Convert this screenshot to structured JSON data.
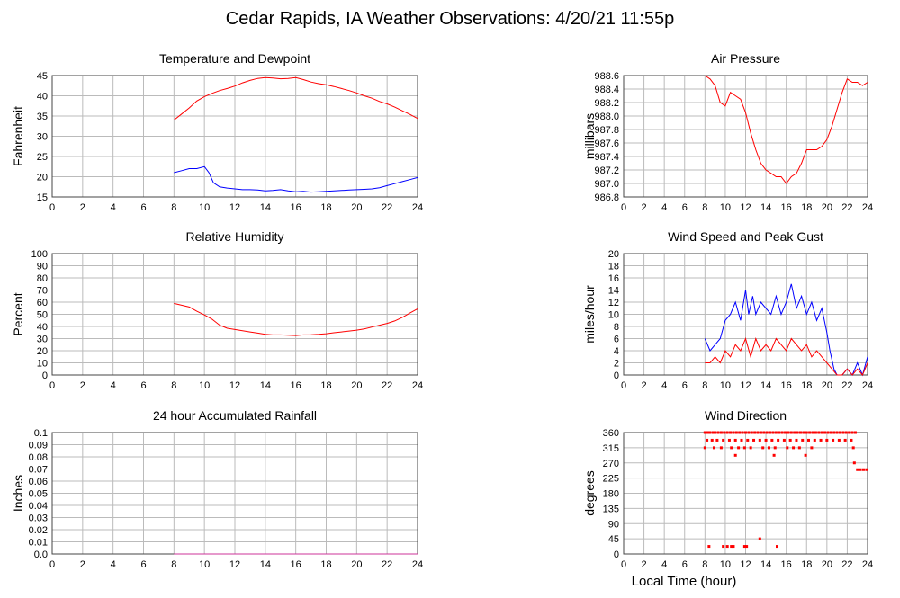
{
  "title": "Cedar Rapids, IA Weather Observations: 4/20/21 11:55p",
  "footer_xlabel": "Local Time (hour)",
  "colors": {
    "red": "#ff0000",
    "blue": "#0000ff",
    "magenta": "#cc3399",
    "grid": "#bbbbbb"
  },
  "chart_data": [
    {
      "type": "line",
      "title": "Temperature and Dewpoint",
      "ylabel": "Fahrenheit",
      "xlim": [
        0,
        24
      ],
      "ylim": [
        15,
        45
      ],
      "xticks": [
        0,
        2,
        4,
        6,
        8,
        10,
        12,
        14,
        16,
        18,
        20,
        22,
        24
      ],
      "yticks": [
        15,
        20,
        25,
        30,
        35,
        40,
        45
      ],
      "series": [
        {
          "color": "#ff0000",
          "x": [
            8,
            8.5,
            9,
            9.5,
            10,
            10.5,
            11,
            11.5,
            12,
            12.5,
            13,
            13.5,
            14,
            14.5,
            15,
            15.5,
            16,
            16.5,
            17,
            17.5,
            18,
            18.5,
            19,
            19.5,
            20,
            20.5,
            21,
            21.5,
            22,
            22.5,
            23,
            23.5,
            24
          ],
          "y": [
            34,
            35.5,
            37,
            38.7,
            39.8,
            40.6,
            41.3,
            41.8,
            42.4,
            43.2,
            43.8,
            44.3,
            44.5,
            44.4,
            44.2,
            44.3,
            44.5,
            44.0,
            43.4,
            43.0,
            42.7,
            42.3,
            41.8,
            41.3,
            40.7,
            40.0,
            39.4,
            38.6,
            38.0,
            37.2,
            36.3,
            35.4,
            34.4
          ]
        },
        {
          "color": "#0000ff",
          "x": [
            8,
            8.5,
            9,
            9.5,
            10,
            10.3,
            10.6,
            11,
            11.5,
            12,
            12.5,
            13,
            13.5,
            14,
            14.5,
            15,
            15.5,
            16,
            16.5,
            17,
            17.5,
            18,
            18.5,
            19,
            19.5,
            20,
            20.5,
            21,
            21.5,
            22,
            22.5,
            23,
            23.5,
            24
          ],
          "y": [
            21,
            21.5,
            22,
            22,
            22.5,
            21,
            18.5,
            17.5,
            17.2,
            17,
            16.8,
            16.8,
            16.7,
            16.5,
            16.6,
            16.8,
            16.5,
            16.3,
            16.4,
            16.2,
            16.3,
            16.4,
            16.5,
            16.6,
            16.7,
            16.8,
            16.9,
            17.0,
            17.3,
            17.8,
            18.3,
            18.8,
            19.3,
            19.8
          ]
        }
      ]
    },
    {
      "type": "line",
      "title": "Air Pressure",
      "ylabel": "millibars",
      "xlim": [
        0,
        24
      ],
      "ylim": [
        986.8,
        988.6
      ],
      "xticks": [
        0,
        2,
        4,
        6,
        8,
        10,
        12,
        14,
        16,
        18,
        20,
        22,
        24
      ],
      "yticks": [
        986.8,
        987.0,
        987.2,
        987.4,
        987.6,
        987.8,
        988.0,
        988.2,
        988.4,
        988.6
      ],
      "series": [
        {
          "color": "#ff0000",
          "x": [
            8,
            8.5,
            9,
            9.5,
            10,
            10.5,
            11,
            11.5,
            12,
            12.5,
            13,
            13.5,
            14,
            14.5,
            15,
            15.5,
            16,
            16.5,
            17,
            17.5,
            18,
            18.5,
            19,
            19.5,
            20,
            20.5,
            21,
            21.5,
            22,
            22.5,
            23,
            23.5,
            24
          ],
          "y": [
            988.6,
            988.55,
            988.45,
            988.2,
            988.15,
            988.35,
            988.3,
            988.25,
            988.05,
            987.75,
            987.5,
            987.3,
            987.2,
            987.15,
            987.1,
            987.1,
            987.0,
            987.1,
            987.15,
            987.3,
            987.5,
            987.5,
            987.5,
            987.55,
            987.65,
            987.85,
            988.1,
            988.35,
            988.55,
            988.5,
            988.5,
            988.45,
            988.5
          ]
        }
      ]
    },
    {
      "type": "line",
      "title": "Relative Humidity",
      "ylabel": "Percent",
      "xlim": [
        0,
        24
      ],
      "ylim": [
        0,
        100
      ],
      "xticks": [
        0,
        2,
        4,
        6,
        8,
        10,
        12,
        14,
        16,
        18,
        20,
        22,
        24
      ],
      "yticks": [
        0,
        10,
        20,
        30,
        40,
        50,
        60,
        70,
        80,
        90,
        100
      ],
      "series": [
        {
          "color": "#ff0000",
          "x": [
            8,
            8.5,
            9,
            9.5,
            10,
            10.5,
            11,
            11.5,
            12,
            12.5,
            13,
            13.5,
            14,
            14.5,
            15,
            15.5,
            16,
            16.5,
            17,
            17.5,
            18,
            18.5,
            19,
            19.5,
            20,
            20.5,
            21,
            21.5,
            22,
            22.5,
            23,
            23.5,
            24
          ],
          "y": [
            59,
            57.5,
            56,
            52.5,
            49.5,
            46,
            41,
            38.5,
            37.5,
            36.5,
            35.5,
            34.5,
            33.5,
            33,
            33,
            32.8,
            32.5,
            33,
            33.2,
            33.5,
            34,
            34.8,
            35.5,
            36.2,
            37,
            38,
            39.5,
            41,
            42.5,
            44.5,
            47.5,
            51,
            54.5
          ]
        }
      ]
    },
    {
      "type": "line",
      "title": "Wind Speed and Peak Gust",
      "ylabel": "miles/hour",
      "xlim": [
        0,
        24
      ],
      "ylim": [
        0,
        20
      ],
      "xticks": [
        0,
        2,
        4,
        6,
        8,
        10,
        12,
        14,
        16,
        18,
        20,
        22,
        24
      ],
      "yticks": [
        0,
        2,
        4,
        6,
        8,
        10,
        12,
        14,
        16,
        18,
        20
      ],
      "series": [
        {
          "color": "#0000ff",
          "x": [
            8,
            8.5,
            9,
            9.5,
            10,
            10.5,
            11,
            11.5,
            12,
            12.3,
            12.7,
            13,
            13.5,
            14,
            14.5,
            15,
            15.5,
            16,
            16.5,
            17,
            17.5,
            18,
            18.5,
            19,
            19.5,
            20,
            20.3,
            20.7,
            21,
            21.5,
            22,
            22.5,
            23,
            23.5,
            24
          ],
          "y": [
            6,
            4,
            5,
            6,
            9,
            10,
            12,
            9,
            14,
            10,
            13,
            10,
            12,
            11,
            10,
            13,
            10,
            12,
            15,
            11,
            13,
            10,
            12,
            9,
            11,
            7,
            4,
            1,
            0,
            0,
            1,
            0,
            2,
            0,
            3
          ]
        },
        {
          "color": "#ff0000",
          "x": [
            8,
            8.5,
            9,
            9.5,
            10,
            10.5,
            11,
            11.5,
            12,
            12.5,
            13,
            13.5,
            14,
            14.5,
            15,
            15.5,
            16,
            16.5,
            17,
            17.5,
            18,
            18.5,
            19,
            19.5,
            20,
            20.5,
            21,
            21.5,
            22,
            22.5,
            23,
            23.5,
            24
          ],
          "y": [
            2,
            2,
            3,
            2,
            4,
            3,
            5,
            4,
            6,
            3,
            6,
            4,
            5,
            4,
            6,
            5,
            4,
            6,
            5,
            4,
            5,
            3,
            4,
            3,
            2,
            1,
            0,
            0,
            1,
            0,
            1,
            0,
            2
          ]
        }
      ]
    },
    {
      "type": "line",
      "title": "24 hour Accumulated Rainfall",
      "ylabel": "Inches",
      "xlim": [
        0,
        24
      ],
      "ylim": [
        0,
        0.1
      ],
      "xticks": [
        0,
        2,
        4,
        6,
        8,
        10,
        12,
        14,
        16,
        18,
        20,
        22,
        24
      ],
      "yticks": [
        0.0,
        0.01,
        0.02,
        0.03,
        0.04,
        0.05,
        0.06,
        0.07,
        0.08,
        0.09,
        0.1
      ],
      "ytick_labels": [
        "0.0",
        "0.01",
        "0.02",
        "0.03",
        "0.04",
        "0.05",
        "0.06",
        "0.07",
        "0.08",
        "0.09",
        "0.1"
      ],
      "series": [
        {
          "color": "#cc3399",
          "x": [
            8,
            24
          ],
          "y": [
            0,
            0
          ]
        }
      ]
    },
    {
      "type": "scatter",
      "title": "Wind Direction",
      "ylabel": "degrees",
      "xlabel": "Local Time (hour)",
      "xlim": [
        0,
        24
      ],
      "ylim": [
        0,
        360
      ],
      "xticks": [
        0,
        2,
        4,
        6,
        8,
        10,
        12,
        14,
        16,
        18,
        20,
        22,
        24
      ],
      "yticks": [
        0,
        45,
        90,
        135,
        180,
        225,
        270,
        315,
        360
      ],
      "series": [
        {
          "color": "#ff0000",
          "x": [
            8,
            8.1,
            8.3,
            8.5,
            8.8,
            9.0,
            9.3,
            9.6,
            9.9,
            10.2,
            10.5,
            10.8,
            11.1,
            11.4,
            11.7,
            12.0,
            12.3,
            12.6,
            12.9,
            13.2,
            13.5,
            13.8,
            14.1,
            14.4,
            14.7,
            15.0,
            15.3,
            15.6,
            15.9,
            16.2,
            16.5,
            16.8,
            17.1,
            17.4,
            17.7,
            18.0,
            18.3,
            18.6,
            18.9,
            19.2,
            19.5,
            19.8,
            20.1,
            20.4,
            20.7,
            21.0,
            21.3,
            21.6,
            21.9,
            22.2,
            22.5,
            22.8,
            23.0,
            23.3,
            23.6,
            23.9,
            8.2,
            8.7,
            9.2,
            9.8,
            10.4,
            11.0,
            11.6,
            12.2,
            12.8,
            13.4,
            14.0,
            14.6,
            15.2,
            15.8,
            16.4,
            17.0,
            17.6,
            18.2,
            18.8,
            19.4,
            20.0,
            20.6,
            21.2,
            21.8,
            22.4,
            8.0,
            8.9,
            9.6,
            10.6,
            11.3,
            11.9,
            12.5,
            13.7,
            14.3,
            14.9,
            16.1,
            16.7,
            17.3,
            18.5,
            22.6,
            11.0,
            14.8,
            17.9,
            22.7,
            8.4,
            9.8,
            10.2,
            10.6,
            10.8,
            11.9,
            12.1,
            13.4,
            15.1
          ],
          "y": [
            360,
            360,
            360,
            360,
            360,
            360,
            360,
            360,
            360,
            360,
            360,
            360,
            360,
            360,
            360,
            360,
            360,
            360,
            360,
            360,
            360,
            360,
            360,
            360,
            360,
            360,
            360,
            360,
            360,
            360,
            360,
            360,
            360,
            360,
            360,
            360,
            360,
            360,
            360,
            360,
            360,
            360,
            360,
            360,
            360,
            360,
            360,
            360,
            360,
            360,
            360,
            360,
            250,
            250,
            250,
            250,
            337.5,
            337.5,
            337.5,
            337.5,
            337.5,
            337.5,
            337.5,
            337.5,
            337.5,
            337.5,
            337.5,
            337.5,
            337.5,
            337.5,
            337.5,
            337.5,
            337.5,
            337.5,
            337.5,
            337.5,
            337.5,
            337.5,
            337.5,
            337.5,
            337.5,
            315,
            315,
            315,
            315,
            315,
            315,
            315,
            315,
            315,
            315,
            315,
            315,
            315,
            315,
            315,
            292.5,
            292.5,
            292.5,
            270,
            22.5,
            22.5,
            22.5,
            22.5,
            22.5,
            22.5,
            22.5,
            45,
            22.5
          ]
        }
      ]
    }
  ]
}
